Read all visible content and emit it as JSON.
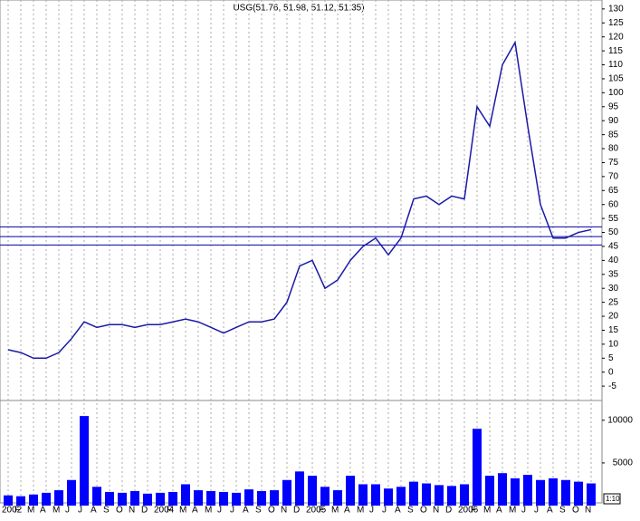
{
  "chart_data": {
    "type": "line",
    "title": "USG(51.76, 51.98, 51.12, 51.35)",
    "categories": [
      "2002",
      "F",
      "M",
      "A",
      "M",
      "J",
      "J",
      "A",
      "S",
      "O",
      "N",
      "D",
      "2004",
      "F",
      "M",
      "A",
      "M",
      "J",
      "J",
      "A",
      "S",
      "O",
      "N",
      "D",
      "2005",
      "F",
      "M",
      "A",
      "M",
      "J",
      "J",
      "A",
      "S",
      "O",
      "N",
      "D",
      "2006",
      "F",
      "M",
      "A",
      "M",
      "J",
      "J",
      "A",
      "S",
      "O",
      "N"
    ],
    "series": [
      {
        "type": "line",
        "color": "#1a1aa8",
        "values": [
          8,
          7,
          5,
          5,
          7,
          12,
          18,
          16,
          17,
          17,
          16,
          17,
          17,
          18,
          19,
          18,
          16,
          14,
          16,
          18,
          18,
          19,
          25,
          38,
          40,
          30,
          33,
          40,
          45,
          48,
          42,
          48,
          62,
          63,
          60,
          63,
          62,
          95,
          88,
          110,
          118,
          88,
          60,
          48,
          48,
          50,
          51
        ]
      },
      {
        "type": "bar",
        "axis": "y2",
        "color": "#0000ff",
        "values": [
          1200,
          1100,
          1300,
          1500,
          1800,
          3000,
          10500,
          2200,
          1600,
          1500,
          1700,
          1400,
          1500,
          1600,
          2500,
          1800,
          1700,
          1600,
          1500,
          1900,
          1700,
          1800,
          3000,
          4000,
          3500,
          2200,
          1800,
          3500,
          2500,
          2500,
          2000,
          2200,
          2800,
          2600,
          2400,
          2300,
          2500,
          9000,
          3500,
          3800,
          3200,
          3600,
          3000,
          3200,
          3000,
          2800,
          2600
        ]
      }
    ],
    "ylim": [
      -9.5,
      133.2
    ],
    "yticks": [
      130,
      125,
      120,
      115,
      110,
      105,
      100,
      95,
      90,
      85,
      80,
      75,
      70,
      65,
      60,
      55,
      50,
      45,
      40,
      35,
      30,
      25,
      20,
      15,
      10,
      5,
      0,
      -5
    ],
    "y2lim": [
      0,
      12000
    ],
    "y2ticks": [
      10000,
      5000
    ],
    "hlines": [
      52,
      48.5,
      45.5
    ],
    "hline_color": "#0000aa",
    "grid": true,
    "annotation": "1:10"
  }
}
